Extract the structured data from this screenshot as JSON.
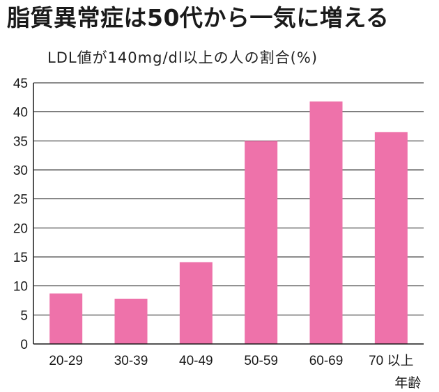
{
  "title": "脂質異常症は50代から一気に増える",
  "subtitle": "LDL値が140mg/dl以上の人の割合(%)",
  "chart_data": {
    "type": "bar",
    "title": "脂質異常症は50代から一気に増える",
    "ylabel": "LDL値が140mg/dl以上の人の割合(%)",
    "xlabel": "年齢",
    "categories": [
      "20-29",
      "30-39",
      "40-49",
      "50-59",
      "60-69",
      "70 以上"
    ],
    "values": [
      8.7,
      7.8,
      14.1,
      35.0,
      41.8,
      36.5
    ],
    "ylim": [
      0,
      45
    ],
    "yticks": [
      0,
      5,
      10,
      15,
      20,
      25,
      30,
      35,
      40,
      45
    ],
    "grid": "horizontal",
    "bar_color": "#ee72aa",
    "axis_color": "#1a1a1a"
  }
}
